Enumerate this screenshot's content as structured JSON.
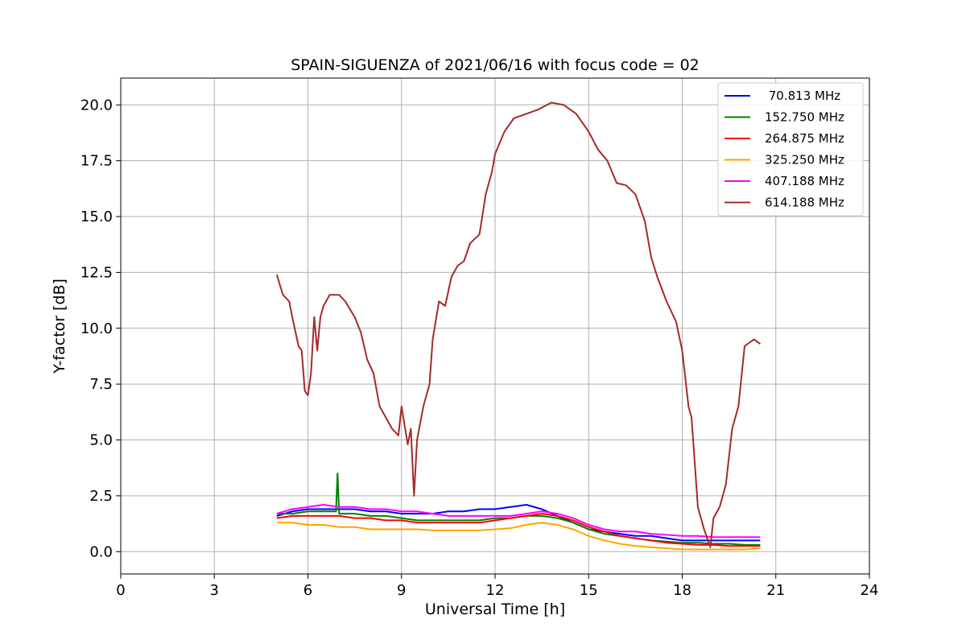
{
  "chart_data": {
    "type": "line",
    "title": "SPAIN-SIGUENZA of 2021/06/16 with focus code = 02",
    "xlabel": "Universal Time [h]",
    "ylabel": "Y-factor [dB]",
    "xlim": [
      0,
      24
    ],
    "ylim": [
      -1.0,
      21.2
    ],
    "xticks": [
      0,
      3,
      6,
      9,
      12,
      15,
      18,
      21,
      24
    ],
    "xtick_labels": [
      "0",
      "3",
      "6",
      "9",
      "12",
      "15",
      "18",
      "21",
      "24"
    ],
    "yticks": [
      0,
      2.5,
      5,
      7.5,
      10,
      12.5,
      15,
      17.5,
      20
    ],
    "ytick_labels": [
      "0.0",
      "2.5",
      "5.0",
      "7.5",
      "10.0",
      "12.5",
      "15.0",
      "17.5",
      "20.0"
    ],
    "grid": true,
    "legend_position": "top-right",
    "series": [
      {
        "name": " 70.813 MHz",
        "color": "#0000ff",
        "x": [
          5.0,
          5.5,
          6.0,
          6.5,
          7.0,
          7.5,
          8.0,
          8.5,
          9.0,
          9.5,
          10.0,
          10.5,
          11.0,
          11.5,
          12.0,
          12.5,
          13.0,
          13.5,
          14.0,
          14.5,
          15.0,
          15.5,
          16.0,
          16.5,
          17.0,
          17.5,
          18.0,
          18.5,
          19.0,
          19.5,
          20.0,
          20.5
        ],
        "y": [
          1.6,
          1.8,
          1.9,
          1.9,
          1.9,
          1.9,
          1.8,
          1.8,
          1.7,
          1.7,
          1.7,
          1.8,
          1.8,
          1.9,
          1.9,
          2.0,
          2.1,
          1.9,
          1.6,
          1.3,
          1.0,
          0.9,
          0.8,
          0.7,
          0.7,
          0.6,
          0.5,
          0.5,
          0.5,
          0.5,
          0.5,
          0.5
        ]
      },
      {
        "name": "152.750 MHz",
        "color": "#008000",
        "x": [
          5.0,
          5.5,
          6.0,
          6.5,
          6.9,
          6.95,
          7.0,
          7.5,
          8.0,
          8.5,
          9.0,
          9.5,
          10.0,
          10.5,
          11.0,
          11.5,
          12.0,
          12.5,
          13.0,
          13.5,
          14.0,
          14.5,
          15.0,
          15.5,
          16.0,
          16.5,
          17.0,
          17.5,
          18.0,
          18.5,
          19.0,
          19.5,
          20.0,
          20.5
        ],
        "y": [
          1.7,
          1.7,
          1.8,
          1.8,
          1.8,
          3.5,
          1.7,
          1.7,
          1.6,
          1.6,
          1.5,
          1.4,
          1.4,
          1.4,
          1.4,
          1.4,
          1.5,
          1.5,
          1.6,
          1.6,
          1.5,
          1.3,
          1.0,
          0.8,
          0.7,
          0.6,
          0.5,
          0.45,
          0.4,
          0.4,
          0.35,
          0.35,
          0.3,
          0.3
        ]
      },
      {
        "name": "264.875 MHz",
        "color": "#ff0000",
        "x": [
          5.0,
          5.5,
          6.0,
          6.5,
          7.0,
          7.5,
          8.0,
          8.5,
          9.0,
          9.5,
          10.0,
          10.5,
          11.0,
          11.5,
          12.0,
          12.5,
          13.0,
          13.5,
          14.0,
          14.5,
          15.0,
          15.5,
          16.0,
          16.5,
          17.0,
          17.5,
          18.0,
          18.5,
          19.0,
          19.5,
          20.0,
          20.5
        ],
        "y": [
          1.5,
          1.6,
          1.6,
          1.6,
          1.6,
          1.5,
          1.5,
          1.4,
          1.4,
          1.3,
          1.3,
          1.3,
          1.3,
          1.3,
          1.4,
          1.5,
          1.6,
          1.7,
          1.6,
          1.4,
          1.1,
          0.9,
          0.7,
          0.6,
          0.5,
          0.4,
          0.35,
          0.3,
          0.3,
          0.25,
          0.25,
          0.25
        ]
      },
      {
        "name": "325.250 MHz",
        "color": "#ffa500",
        "x": [
          5.0,
          5.5,
          6.0,
          6.5,
          7.0,
          7.5,
          8.0,
          8.5,
          9.0,
          9.5,
          10.0,
          10.5,
          11.0,
          11.5,
          12.0,
          12.5,
          13.0,
          13.5,
          14.0,
          14.5,
          15.0,
          15.5,
          16.0,
          16.5,
          17.0,
          17.5,
          18.0,
          18.5,
          19.0,
          19.5,
          20.0,
          20.5
        ],
        "y": [
          1.3,
          1.3,
          1.2,
          1.2,
          1.1,
          1.1,
          1.0,
          1.0,
          1.0,
          1.0,
          0.95,
          0.95,
          0.95,
          0.95,
          1.0,
          1.05,
          1.2,
          1.3,
          1.2,
          1.0,
          0.7,
          0.5,
          0.35,
          0.25,
          0.2,
          0.15,
          0.1,
          0.1,
          0.1,
          0.1,
          0.1,
          0.15
        ]
      },
      {
        "name": "407.188 MHz",
        "color": "#ff00ff",
        "x": [
          5.0,
          5.5,
          6.0,
          6.5,
          7.0,
          7.5,
          8.0,
          8.5,
          9.0,
          9.5,
          10.0,
          10.5,
          11.0,
          11.5,
          12.0,
          12.5,
          13.0,
          13.5,
          14.0,
          14.5,
          15.0,
          15.5,
          16.0,
          16.5,
          17.0,
          17.5,
          18.0,
          18.5,
          19.0,
          19.5,
          20.0,
          20.5
        ],
        "y": [
          1.7,
          1.9,
          2.0,
          2.1,
          2.0,
          2.0,
          1.9,
          1.9,
          1.8,
          1.8,
          1.7,
          1.6,
          1.6,
          1.6,
          1.6,
          1.6,
          1.7,
          1.8,
          1.7,
          1.5,
          1.2,
          1.0,
          0.9,
          0.9,
          0.8,
          0.75,
          0.7,
          0.7,
          0.65,
          0.65,
          0.65,
          0.65
        ]
      },
      {
        "name": "614.188 MHz",
        "color": "#a52a2a",
        "x": [
          5.0,
          5.2,
          5.4,
          5.5,
          5.7,
          5.8,
          5.9,
          6.0,
          6.1,
          6.2,
          6.3,
          6.4,
          6.5,
          6.7,
          7.0,
          7.2,
          7.5,
          7.7,
          7.9,
          8.1,
          8.3,
          8.5,
          8.7,
          8.9,
          9.0,
          9.2,
          9.3,
          9.4,
          9.5,
          9.7,
          9.9,
          10.0,
          10.2,
          10.4,
          10.6,
          10.8,
          11.0,
          11.2,
          11.5,
          11.7,
          11.9,
          12.0,
          12.3,
          12.6,
          13.0,
          13.4,
          13.8,
          14.2,
          14.6,
          15.0,
          15.3,
          15.6,
          15.9,
          16.2,
          16.5,
          16.8,
          17.0,
          17.2,
          17.5,
          17.8,
          18.0,
          18.2,
          18.3,
          18.5,
          18.7,
          18.9,
          19.0,
          19.2,
          19.4,
          19.6,
          19.8,
          20.0,
          20.3,
          20.5
        ],
        "y": [
          12.4,
          11.5,
          11.2,
          10.5,
          9.2,
          9.0,
          7.2,
          7.0,
          8.0,
          10.5,
          9.0,
          10.5,
          11.0,
          11.5,
          11.5,
          11.2,
          10.5,
          9.8,
          8.6,
          8.0,
          6.5,
          6.0,
          5.5,
          5.2,
          6.5,
          4.8,
          5.5,
          2.5,
          5.0,
          6.5,
          7.5,
          9.5,
          11.2,
          11.0,
          12.3,
          12.8,
          13.0,
          13.8,
          14.2,
          16.0,
          17.0,
          17.8,
          18.8,
          19.4,
          19.6,
          19.8,
          20.1,
          20.0,
          19.6,
          18.8,
          18.0,
          17.5,
          16.5,
          16.4,
          16.0,
          14.8,
          13.2,
          12.3,
          11.2,
          10.3,
          9.0,
          6.5,
          6.0,
          2.0,
          1.0,
          0.2,
          1.5,
          2.0,
          3.0,
          5.5,
          6.5,
          9.2,
          9.5,
          9.3
        ]
      }
    ]
  }
}
